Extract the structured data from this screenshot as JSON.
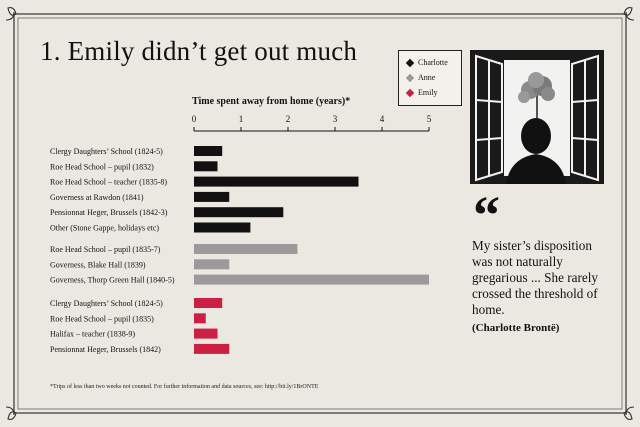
{
  "title": "1. Emily didn’t get out much",
  "legend": [
    {
      "label": "Charlotte",
      "color": "#111111"
    },
    {
      "label": "Anne",
      "color": "#9a9a9a"
    },
    {
      "label": "Emily",
      "color": "#cc1f44"
    }
  ],
  "quote": {
    "mark": "“",
    "text": "My sister’s disposition was not naturally gregarious ... She rarely crossed the threshold of home.",
    "author": "(Charlotte Brontë)"
  },
  "footnote": "*Trips of less than two weeks not counted. For further information and data sources, see: http://bit.ly/1BrONTE",
  "chart_data": {
    "type": "bar",
    "orientation": "horizontal",
    "title": "Time spent away from home (years)*",
    "xlim": [
      0,
      5
    ],
    "xticks": [
      0,
      1,
      2,
      3,
      4,
      5
    ],
    "grid": false,
    "legend_position": "top-right",
    "series": [
      {
        "name": "Charlotte",
        "color": "#111111",
        "categories": [
          "Clergy Daughters’ School (1824-5)",
          "Roe Head School – pupil (1832)",
          "Roe Head School – teacher (1835-8)",
          "Governess at Rawdon (1841)",
          "Pensionnat Heger, Brussels (1842-3)",
          "Other (Stone Gappe, holidays etc)"
        ],
        "values": [
          0.6,
          0.5,
          3.5,
          0.75,
          1.9,
          1.2
        ]
      },
      {
        "name": "Anne",
        "color": "#9a9a9a",
        "categories": [
          "Roe Head School – pupil (1835-7)",
          "Governess, Blake Hall (1839)",
          "Governess, Thorp Green Hall (1840-5)"
        ],
        "values": [
          2.2,
          0.75,
          5.0
        ]
      },
      {
        "name": "Emily",
        "color": "#cc1f44",
        "categories": [
          "Clergy Daughters’ School (1824-5)",
          "Roe Head School – pupil (1835)",
          "Halifax – teacher (1838-9)",
          "Pensionnat Heger, Brussels (1842)"
        ],
        "values": [
          0.6,
          0.25,
          0.5,
          0.75
        ]
      }
    ]
  }
}
